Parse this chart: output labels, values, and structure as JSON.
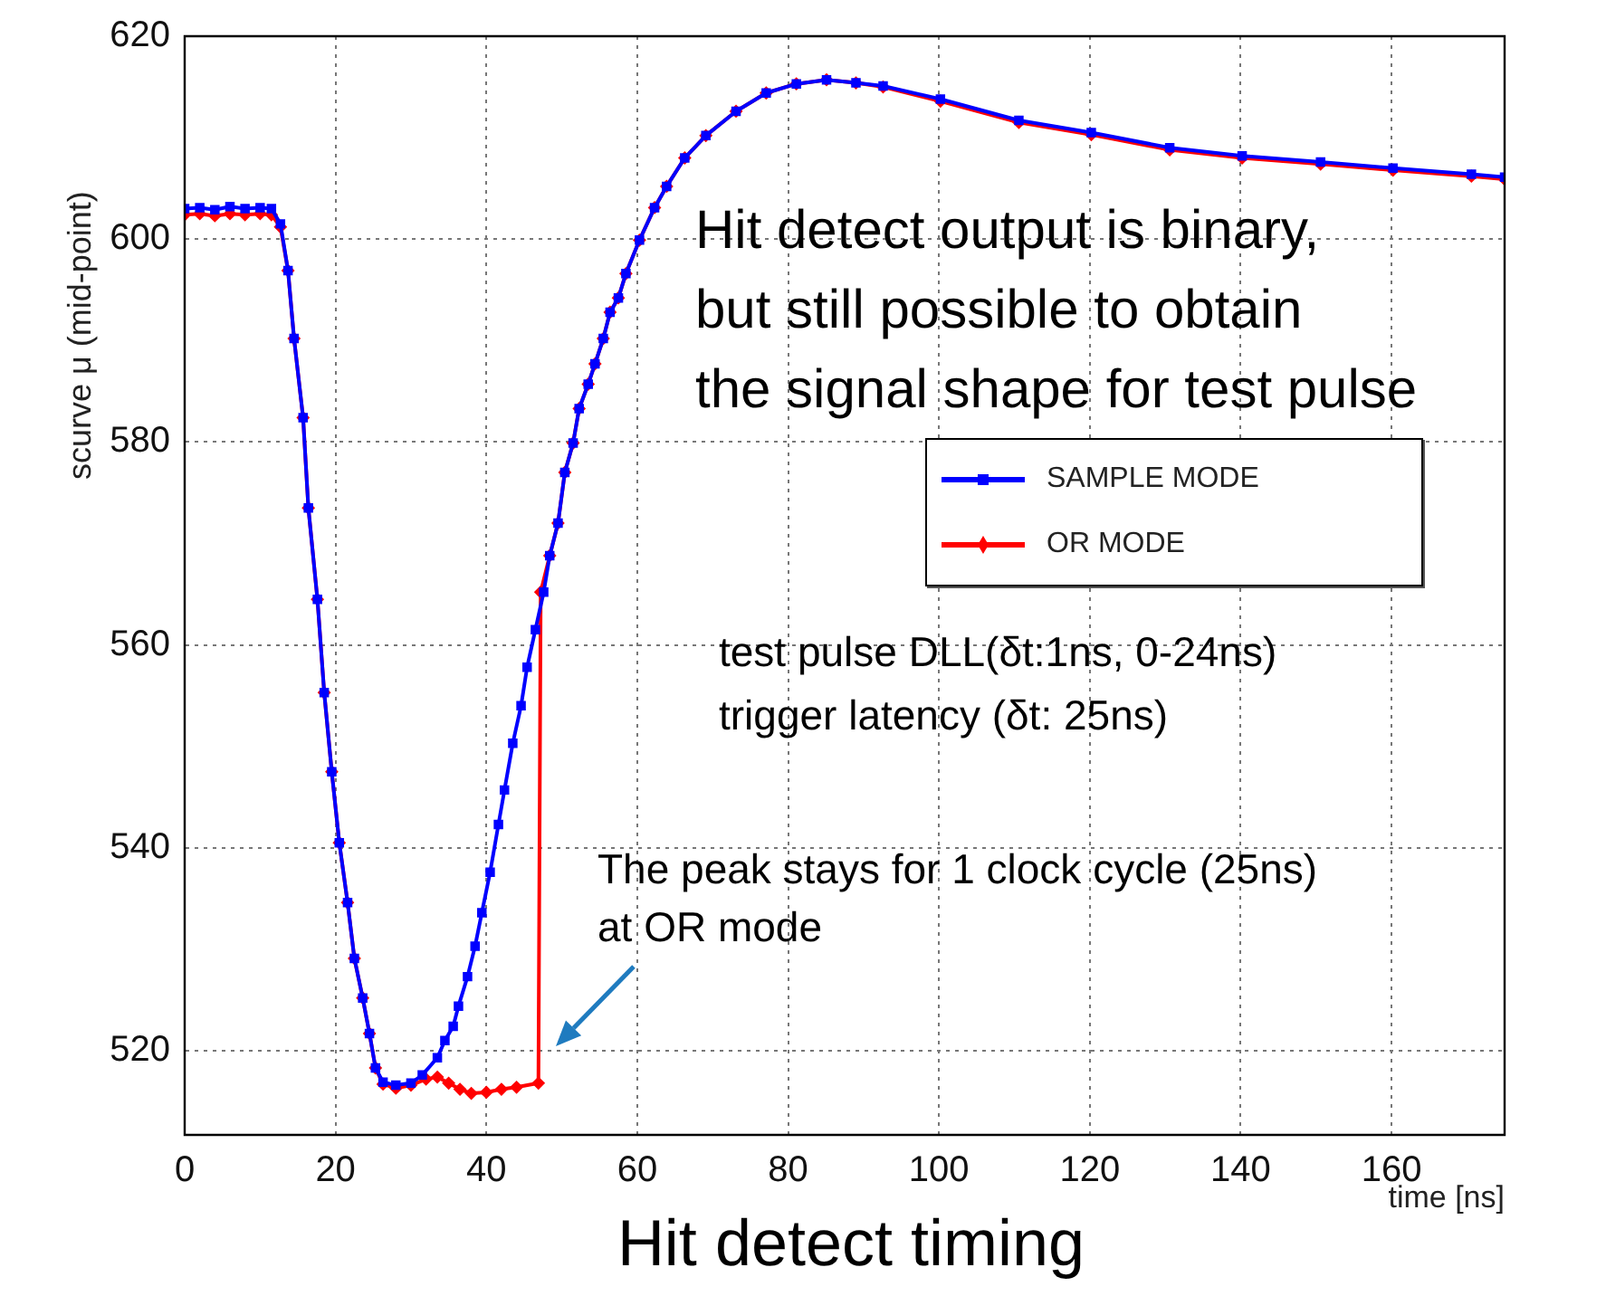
{
  "chart_data": {
    "type": "line",
    "title": "Hit detect timing",
    "xlabel": "time [ns]",
    "ylabel": "scurve μ (mid-point)",
    "xlim": [
      0,
      175
    ],
    "xticks": [
      0,
      20,
      40,
      60,
      80,
      100,
      120,
      140,
      160
    ],
    "ylim": [
      511.7,
      620
    ],
    "yticks": [
      520,
      540,
      560,
      580,
      600,
      620
    ],
    "grid": true,
    "legend": "right",
    "annotations": [
      "Hit detect output is binary,\nbut still possible to obtain\nthe signal shape for test pulse",
      "test pulse DLL(δt:1ns, 0-24ns)\ntrigger latency (δt: 25ns)",
      "The peak stays for 1 clock cycle (25ns)\nat OR mode"
    ],
    "series": [
      {
        "name": "SAMPLE MODE",
        "color": "#0000ff",
        "marker": "square",
        "x": [
          0,
          2,
          4,
          6,
          8,
          10,
          11.5,
          12.7,
          13.7,
          14.5,
          15.7,
          16.4,
          17.6,
          18.5,
          19.5,
          20.5,
          21.6,
          22.5,
          23.6,
          24.5,
          25.3,
          26.3,
          28,
          30,
          31.5,
          33.5,
          34.5,
          35.6,
          36.3,
          37.5,
          38.5,
          39.4,
          40.5,
          41.6,
          42.4,
          43.5,
          44.6,
          45.4,
          46.5,
          47.6,
          48.4,
          49.5,
          50.4,
          51.5,
          52.3,
          53.5,
          54.4,
          55.5,
          56.4,
          57.5,
          58.5,
          60.3,
          62.3,
          63.9,
          66.3,
          69.1,
          73.1,
          77.1,
          81.1,
          85.1,
          89,
          92.6,
          100.2,
          110.6,
          120.2,
          130.6,
          140.2,
          150.6,
          160.2,
          170.6,
          175
        ],
        "values": [
          603,
          603.1,
          602.9,
          603.2,
          603,
          603.1,
          603,
          601.5,
          596.9,
          590.2,
          582.4,
          573.5,
          564.5,
          555.3,
          547.5,
          540.5,
          534.6,
          529.1,
          525.2,
          521.7,
          518.3,
          516.9,
          516.6,
          516.8,
          517.6,
          519.3,
          521,
          522.4,
          524.4,
          527.3,
          530.3,
          533.6,
          537.6,
          542.3,
          545.7,
          550.3,
          554,
          557.8,
          561.5,
          565.2,
          568.8,
          572,
          577,
          579.9,
          583.3,
          585.7,
          587.7,
          590.2,
          592.8,
          594.2,
          596.6,
          599.9,
          603.1,
          605.2,
          608,
          610.2,
          612.6,
          614.4,
          615.3,
          615.7,
          615.4,
          615.1,
          613.8,
          611.7,
          610.5,
          609,
          608.2,
          607.6,
          607,
          606.4,
          606.1
        ]
      },
      {
        "name": "OR MODE",
        "color": "#ff0000",
        "marker": "diamond",
        "x": [
          0,
          2,
          4,
          6,
          8,
          10,
          11.5,
          12.7,
          13.7,
          14.5,
          15.7,
          16.4,
          17.6,
          18.5,
          19.5,
          20.5,
          21.6,
          22.5,
          23.6,
          24.5,
          25.3,
          26.3,
          28,
          30,
          32,
          33.5,
          35,
          36.5,
          38,
          40,
          42,
          44,
          46.9,
          47.2,
          48.4,
          49.5,
          50.4,
          51.5,
          52.3,
          53.5,
          54.4,
          55.5,
          56.4,
          57.5,
          58.5,
          60.3,
          62.3,
          63.9,
          66.3,
          69.1,
          73.1,
          77.1,
          81.1,
          85.1,
          89,
          92.6,
          100.2,
          110.6,
          120.2,
          130.6,
          140.2,
          150.6,
          160.2,
          170.6,
          175
        ],
        "values": [
          602.4,
          602.5,
          602.3,
          602.5,
          602.4,
          602.5,
          602.4,
          601.2,
          596.9,
          590.2,
          582.4,
          573.5,
          564.5,
          555.3,
          547.5,
          540.5,
          534.6,
          529.1,
          525.2,
          521.7,
          518.3,
          516.7,
          516.3,
          516.6,
          517.2,
          517.4,
          516.8,
          516.2,
          515.8,
          515.9,
          516.2,
          516.4,
          516.8,
          565.2,
          568.8,
          572,
          577,
          579.9,
          583.3,
          585.7,
          587.7,
          590.2,
          592.8,
          594.2,
          596.6,
          599.9,
          603.1,
          605.2,
          608,
          610.2,
          612.6,
          614.4,
          615.3,
          615.7,
          615.4,
          615,
          613.6,
          611.5,
          610.3,
          608.8,
          608,
          607.4,
          606.8,
          606.2,
          605.9
        ]
      }
    ]
  }
}
